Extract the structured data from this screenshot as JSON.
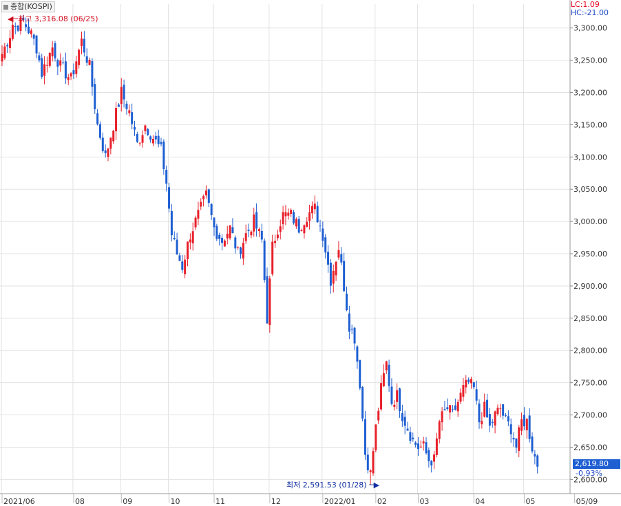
{
  "legend": {
    "symbol_label": "종합(KOSPI)",
    "lc_label": "LC:1.09",
    "hc_label": "HC:-21.00"
  },
  "annotations": {
    "high_label": "최고 3,316.08 (06/25)",
    "low_label": "최저 2,591.53 (01/28)",
    "last_value": "2,619.80",
    "last_change": "-0.93%"
  },
  "colors": {
    "up": "#e8202a",
    "down": "#1e5fd2",
    "grid": "#e2e2e2",
    "axis_text": "#333333",
    "high_text": "#d01020",
    "low_text": "#1030a0"
  },
  "chart_data": {
    "type": "candlestick",
    "title": "",
    "xlabel": "",
    "ylabel": "",
    "ylim": [
      2578,
      3337
    ],
    "y_ticks": [
      "3,300.00",
      "3,250.00",
      "3,200.00",
      "3,150.00",
      "3,100.00",
      "3,050.00",
      "3,000.00",
      "2,950.00",
      "2,900.00",
      "2,850.00",
      "2,800.00",
      "2,750.00",
      "2,700.00",
      "2,650.00",
      "2,600.00"
    ],
    "y_tick_values": [
      3300,
      3250,
      3200,
      3150,
      3100,
      3050,
      3000,
      2950,
      2900,
      2850,
      2800,
      2750,
      2700,
      2650,
      2600
    ],
    "x_labels": [
      "2021/06",
      "08",
      "09",
      "10",
      "11",
      "12",
      "2022/01",
      "02",
      "03",
      "04",
      "05",
      "05/09"
    ],
    "x_label_index": [
      0,
      27,
      45,
      63,
      80,
      101,
      121,
      141,
      157,
      178,
      197,
      216
    ],
    "x_grid_index": [
      0,
      27,
      45,
      63,
      80,
      101,
      121,
      141,
      157,
      178,
      197
    ],
    "high": 3316.08,
    "low": 2591.53,
    "last": 2619.8,
    "anchors": [
      [
        0,
        3260
      ],
      [
        4,
        3300
      ],
      [
        8,
        3310
      ],
      [
        11,
        3290
      ],
      [
        13,
        3270
      ],
      [
        15,
        3230
      ],
      [
        19,
        3270
      ],
      [
        22,
        3240
      ],
      [
        26,
        3220
      ],
      [
        30,
        3280
      ],
      [
        33,
        3240
      ],
      [
        36,
        3150
      ],
      [
        39,
        3100
      ],
      [
        42,
        3150
      ],
      [
        45,
        3200
      ],
      [
        48,
        3170
      ],
      [
        51,
        3120
      ],
      [
        54,
        3150
      ],
      [
        57,
        3130
      ],
      [
        60,
        3110
      ],
      [
        62,
        3060
      ],
      [
        64,
        2980
      ],
      [
        66,
        2950
      ],
      [
        68,
        2930
      ],
      [
        71,
        2980
      ],
      [
        74,
        3010
      ],
      [
        77,
        3040
      ],
      [
        80,
        2990
      ],
      [
        83,
        2970
      ],
      [
        86,
        2990
      ],
      [
        89,
        2950
      ],
      [
        92,
        2980
      ],
      [
        95,
        3000
      ],
      [
        98,
        2970
      ],
      [
        100,
        2850
      ],
      [
        102,
        2960
      ],
      [
        104,
        2990
      ],
      [
        106,
        3010
      ],
      [
        109,
        3010
      ],
      [
        112,
        2990
      ],
      [
        115,
        3010
      ],
      [
        118,
        3020
      ],
      [
        121,
        2980
      ],
      [
        124,
        2910
      ],
      [
        127,
        2960
      ],
      [
        129,
        2900
      ],
      [
        131,
        2840
      ],
      [
        133,
        2820
      ],
      [
        135,
        2750
      ],
      [
        137,
        2640
      ],
      [
        139,
        2610
      ],
      [
        141,
        2680
      ],
      [
        143,
        2740
      ],
      [
        145,
        2780
      ],
      [
        147,
        2720
      ],
      [
        149,
        2730
      ],
      [
        151,
        2700
      ],
      [
        153,
        2680
      ],
      [
        155,
        2660
      ],
      [
        157,
        2650
      ],
      [
        159,
        2650
      ],
      [
        161,
        2630
      ],
      [
        163,
        2630
      ],
      [
        165,
        2690
      ],
      [
        168,
        2710
      ],
      [
        170,
        2700
      ],
      [
        172,
        2720
      ],
      [
        174,
        2740
      ],
      [
        176,
        2750
      ],
      [
        178,
        2740
      ],
      [
        180,
        2690
      ],
      [
        182,
        2710
      ],
      [
        184,
        2680
      ],
      [
        186,
        2700
      ],
      [
        188,
        2710
      ],
      [
        190,
        2690
      ],
      [
        192,
        2680
      ],
      [
        194,
        2650
      ],
      [
        196,
        2690
      ],
      [
        198,
        2690
      ],
      [
        200,
        2650
      ],
      [
        202,
        2620
      ]
    ]
  }
}
